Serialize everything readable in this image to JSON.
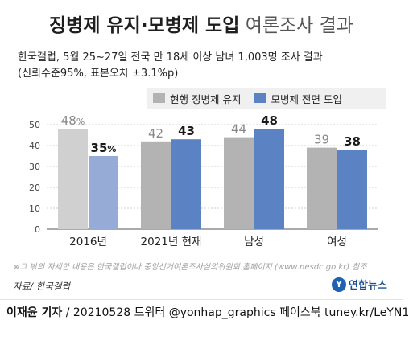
{
  "title_bold": "징병제 유지·모병제 도입",
  "title_light": "여론조사 결과",
  "subtitle_line1": "한국갤럽, 5월 25~27일 전국 만 18세 이상 남녀 1,003명 조사 결과",
  "subtitle_line2": "(신뢰수준95%, 표본오차 ±3.1%p)",
  "note": "※그 밖의 자세한 내용은 한국갤럽이나 중앙선거여론조사심의위원회 홈페이지 (www.nesdc.go.kr) 참조",
  "source": "자료/ 한국갤럽",
  "logo_text": "연합뉴스",
  "logo_mark": "Y",
  "footer": {
    "author": "이재윤 기자",
    "rest": " / 20210528   트위터 @yonhap_graphics  페이스북 tuney.kr/LeYN1"
  },
  "colors": {
    "gray": "#b3b3b3",
    "blue": "#5b82c2",
    "gray_light": "#d0d0d0",
    "blue_light": "#96acd6"
  },
  "chart_data": {
    "type": "bar",
    "categories": [
      "2016년",
      "2021년 현재",
      "남성",
      "여성"
    ],
    "series": [
      {
        "name": "현행 징병제 유지",
        "values": [
          48,
          42,
          44,
          39
        ]
      },
      {
        "name": "모병제 전면 도입",
        "values": [
          35,
          43,
          48,
          38
        ]
      }
    ],
    "data_labels": [
      [
        "48%",
        "42",
        "44",
        "39"
      ],
      [
        "35%",
        "43",
        "48",
        "38"
      ]
    ],
    "ylim": [
      0,
      50
    ],
    "yticks": [
      0,
      10,
      20,
      30,
      40,
      50
    ],
    "grid": true,
    "legend": "top-right"
  }
}
